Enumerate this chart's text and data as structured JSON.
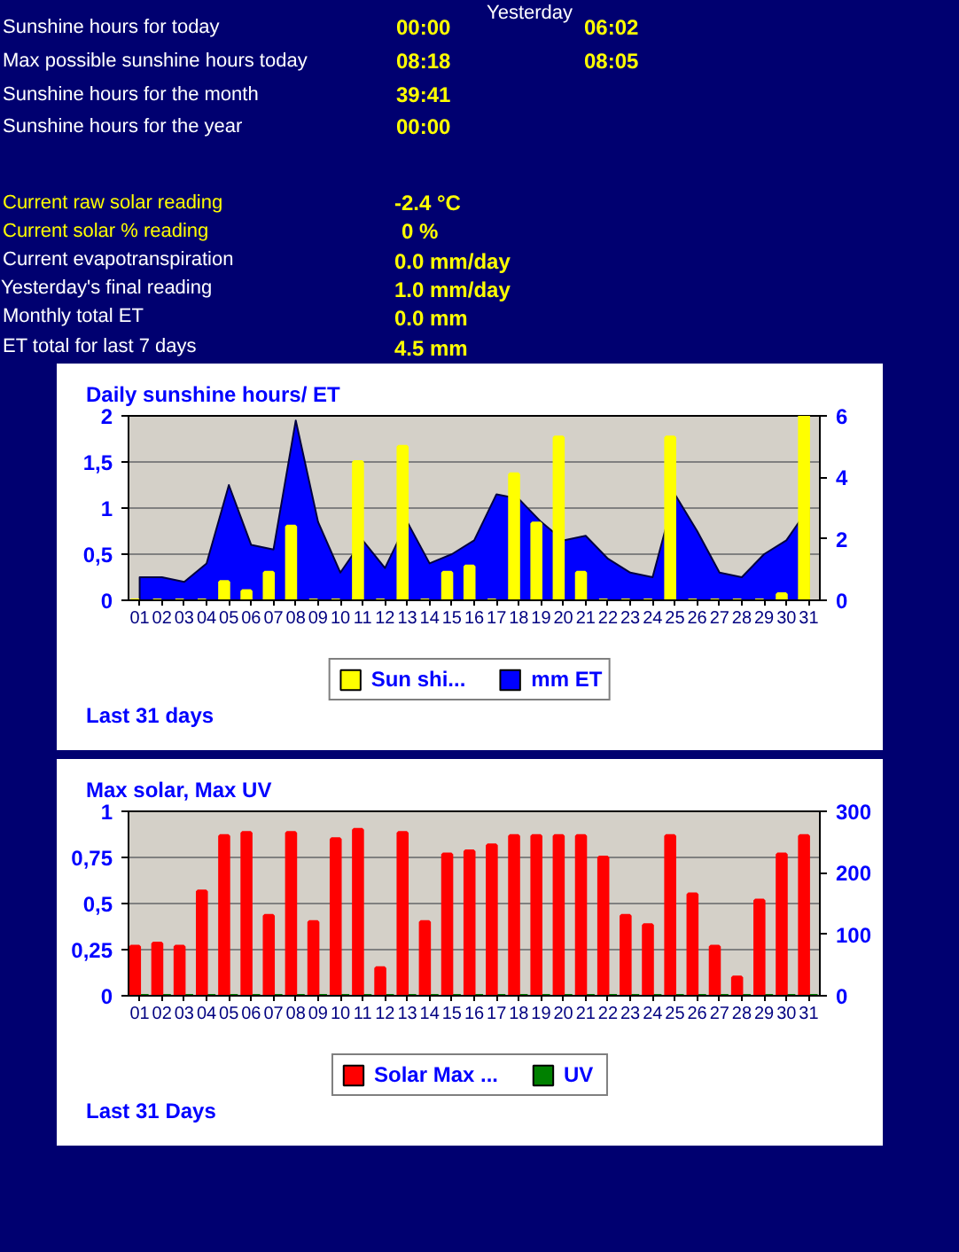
{
  "chart_data": [
    {
      "type": "other",
      "annotations": [
        "Yesterday",
        "Sunshine hours for today",
        "00:00",
        "06:02",
        "Max possible sunshine hours today",
        "08:18",
        "08:05",
        "Sunshine hours for the month",
        "39:41",
        "Sunshine hours for the year",
        "00:00",
        "Current raw solar reading",
        "-2.4 °C",
        "Current solar % reading",
        "0 %",
        "Current evapotranspiration",
        "0.0 mm/day",
        "Yesterday's final reading",
        "1.0 mm/day",
        "Monthly total ET",
        "0.0 mm",
        "ET total for last 7 days",
        "4.5 mm"
      ]
    },
    {
      "type": "bar",
      "title": "Daily sunshine hours/ ET",
      "categories": [
        "01",
        "02",
        "03",
        "04",
        "05",
        "06",
        "07",
        "08",
        "09",
        "10",
        "11",
        "12",
        "13",
        "14",
        "15",
        "16",
        "17",
        "18",
        "19",
        "20",
        "21",
        "22",
        "23",
        "24",
        "25",
        "26",
        "27",
        "28",
        "29",
        "30",
        "31"
      ],
      "series": [
        {
          "name": "Sun shi...",
          "type": "bar",
          "axis": "y2",
          "color": "#ffff00",
          "values": [
            0,
            0,
            0,
            0,
            0.6,
            0.3,
            0.9,
            2.4,
            0,
            0,
            4.5,
            0,
            5.0,
            0,
            0.9,
            1.1,
            0,
            4.1,
            2.5,
            5.3,
            0.9,
            0,
            0,
            0,
            5.3,
            0,
            0,
            0,
            0,
            0.2,
            6.0
          ]
        },
        {
          "name": "mm ET",
          "type": "area",
          "color": "#0000ff",
          "values": [
            0.25,
            0.25,
            0.2,
            0.4,
            1.25,
            0.6,
            0.55,
            1.95,
            0.85,
            0.3,
            0.65,
            0.35,
            0.85,
            0.4,
            0.5,
            0.65,
            1.15,
            1.1,
            0.85,
            0.65,
            0.7,
            0.45,
            0.3,
            0.25,
            1.15,
            0.75,
            0.3,
            0.25,
            0.5,
            0.65,
            1.0
          ]
        }
      ],
      "ylim": [
        0,
        2
      ],
      "yticks": [
        0,
        {
          "value": 0.5,
          "label": "0,5"
        },
        1,
        {
          "value": 1.5,
          "label": "1,5"
        },
        2
      ],
      "y2lim": [
        0,
        6
      ],
      "y2ticks": [
        0,
        2,
        4,
        6
      ],
      "grid": "y",
      "legend": "bottom",
      "annotations": [
        "Last 31 days"
      ]
    },
    {
      "type": "bar",
      "title": "Max solar, Max UV",
      "categories": [
        "01",
        "02",
        "03",
        "04",
        "05",
        "06",
        "07",
        "08",
        "09",
        "10",
        "11",
        "12",
        "13",
        "14",
        "15",
        "16",
        "17",
        "18",
        "19",
        "20",
        "21",
        "22",
        "23",
        "24",
        "25",
        "26",
        "27",
        "28",
        "29",
        "30",
        "31"
      ],
      "series": [
        {
          "name": "Solar Max ...",
          "type": "bar",
          "axis": "y2",
          "color": "#ff0000",
          "values": [
            80,
            85,
            80,
            170,
            260,
            265,
            130,
            265,
            120,
            255,
            270,
            45,
            265,
            120,
            230,
            235,
            245,
            260,
            260,
            260,
            260,
            225,
            130,
            115,
            260,
            165,
            80,
            30,
            155,
            230,
            260
          ]
        },
        {
          "name": "UV",
          "type": "bar",
          "color": "#008000",
          "values": [
            0,
            0,
            0,
            0,
            0,
            0,
            0,
            0,
            0,
            0,
            0,
            0,
            0,
            0,
            0,
            0,
            0,
            0,
            0,
            0,
            0,
            0,
            0,
            0,
            0,
            0,
            0,
            0,
            0,
            0,
            0
          ]
        }
      ],
      "ylim": [
        0,
        1
      ],
      "yticks": [
        0,
        {
          "value": 0.25,
          "label": "0,25"
        },
        {
          "value": 0.5,
          "label": "0,5"
        },
        {
          "value": 0.75,
          "label": "0,75"
        },
        1
      ],
      "y2lim": [
        0,
        300
      ],
      "y2ticks": [
        0,
        100,
        200,
        300
      ],
      "grid": "y",
      "legend": "bottom",
      "annotations": [
        "Last 31 Days"
      ]
    }
  ]
}
